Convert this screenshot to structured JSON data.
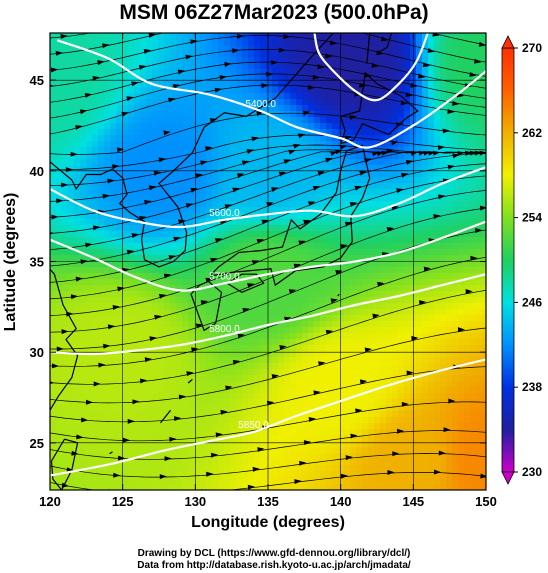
{
  "chart_data": {
    "type": "heatmap",
    "title": "MSM 06Z27Mar2023 (500.0hPa)",
    "xlabel": "Longitude (degrees)",
    "ylabel": "Latitude  (degrees)",
    "xlim": [
      120,
      150
    ],
    "ylim": [
      22.4,
      47.6
    ],
    "x_ticks": [
      120,
      125,
      130,
      135,
      140,
      145,
      150
    ],
    "y_ticks": [
      25,
      30,
      35,
      40,
      45
    ],
    "colorbar": {
      "ticks": [
        230,
        238,
        246,
        254,
        262,
        270
      ],
      "min": 230,
      "max": 270,
      "colors": [
        "#cc00cc",
        "#2020a0",
        "#0030e0",
        "#0090ff",
        "#00e0e0",
        "#20d060",
        "#80e020",
        "#f0f000",
        "#f0b000",
        "#ff6000",
        "#ff3000"
      ]
    },
    "contours": [
      {
        "label": "5400.0",
        "points": [
          [
            120.5,
            47.2
          ],
          [
            124,
            46.2
          ],
          [
            127,
            44.8
          ],
          [
            131,
            44.2
          ],
          [
            134.5,
            43.3
          ],
          [
            137,
            42.4
          ],
          [
            140,
            41.8
          ],
          [
            142,
            41.3
          ],
          [
            145,
            42.5
          ],
          [
            148,
            44.2
          ],
          [
            150,
            45.5
          ]
        ]
      },
      {
        "label": "5600.0",
        "points": [
          [
            120,
            39
          ],
          [
            123,
            37.8
          ],
          [
            126,
            37.2
          ],
          [
            129,
            36.9
          ],
          [
            132,
            37.3
          ],
          [
            135,
            37.6
          ],
          [
            138,
            37.8
          ],
          [
            141,
            37.5
          ],
          [
            144,
            38.2
          ],
          [
            147,
            39.3
          ],
          [
            150,
            40.2
          ]
        ]
      },
      {
        "label": "5700.0",
        "points": [
          [
            120,
            36.2
          ],
          [
            123,
            35.2
          ],
          [
            126,
            34.1
          ],
          [
            129,
            33.4
          ],
          [
            132,
            33.8
          ],
          [
            135,
            34.3
          ],
          [
            138,
            34.7
          ],
          [
            141,
            35
          ],
          [
            144,
            35.5
          ],
          [
            147,
            36.3
          ],
          [
            150,
            37.2
          ]
        ]
      },
      {
        "label": "5800.0",
        "points": [
          [
            120,
            30
          ],
          [
            123,
            29.9
          ],
          [
            126,
            30.1
          ],
          [
            129,
            30.4
          ],
          [
            132,
            30.9
          ],
          [
            135,
            31.5
          ],
          [
            138,
            32
          ],
          [
            141,
            32.6
          ],
          [
            144,
            33.1
          ],
          [
            147,
            33.7
          ],
          [
            150,
            34.3
          ]
        ]
      },
      {
        "label": "5850.0",
        "points": [
          [
            120,
            23.2
          ],
          [
            124,
            23.8
          ],
          [
            128,
            24.6
          ],
          [
            131,
            25.1
          ],
          [
            134,
            25.6
          ],
          [
            137,
            26.5
          ],
          [
            140,
            27.3
          ],
          [
            143,
            28.1
          ],
          [
            146,
            28.8
          ],
          [
            150,
            29.6
          ]
        ]
      },
      {
        "points": [
          [
            138.2,
            47.6
          ],
          [
            138.5,
            46.5
          ],
          [
            139.5,
            45.5
          ],
          [
            141,
            44.4
          ],
          [
            142.5,
            43.9
          ],
          [
            144,
            44.8
          ],
          [
            145.2,
            46
          ],
          [
            146,
            47.6
          ]
        ]
      }
    ],
    "temperature_field": {
      "description": "approximate temperature in K at 500hPa",
      "anchors": [
        {
          "lon": 141,
          "lat": 46,
          "value": 234
        },
        {
          "lon": 128,
          "lat": 40,
          "value": 242
        },
        {
          "lon": 135,
          "lat": 40,
          "value": 244
        },
        {
          "lon": 120,
          "lat": 45,
          "value": 248
        },
        {
          "lon": 150,
          "lat": 46,
          "value": 250
        },
        {
          "lon": 135,
          "lat": 34,
          "value": 252
        },
        {
          "lon": 125,
          "lat": 30,
          "value": 256
        },
        {
          "lon": 140,
          "lat": 28,
          "value": 258
        },
        {
          "lon": 145,
          "lat": 24,
          "value": 262
        },
        {
          "lon": 150,
          "lat": 24,
          "value": 264
        }
      ]
    }
  },
  "credits": {
    "line1": "Drawing by DCL (https://www.gfd-dennou.org/library/dcl/)",
    "line2": "Data from http://database.rish.kyoto-u.ac.jp/arch/jmadata/"
  }
}
